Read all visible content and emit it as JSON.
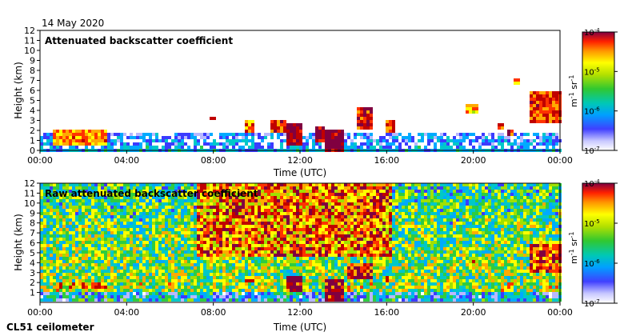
{
  "date_label": "14 May 2020",
  "instrument_label": "CL51 ceilometer",
  "colors": {
    "colormap": [
      "#ffffff",
      "#b8b8ff",
      "#3b3bff",
      "#00aaff",
      "#00c8c8",
      "#2ecc40",
      "#a0e000",
      "#ffff00",
      "#ffaa00",
      "#ff3300",
      "#c00000",
      "#800040"
    ]
  },
  "chart_data": [
    {
      "type": "heatmap",
      "title": "Attenuated backscatter coefficient",
      "xlabel": "Time (UTC)",
      "ylabel": "Height (km)",
      "xlim": [
        0,
        24
      ],
      "ylim": [
        0,
        12
      ],
      "x_ticks": [
        "00:00",
        "04:00",
        "08:00",
        "12:00",
        "16:00",
        "20:00",
        "00:00"
      ],
      "x_tick_values": [
        0,
        4,
        8,
        12,
        16,
        20,
        24
      ],
      "y_ticks": [
        "0",
        "1",
        "2",
        "3",
        "4",
        "5",
        "6",
        "7",
        "8",
        "9",
        "10",
        "11",
        "12"
      ],
      "colorbar": {
        "label_base": "m",
        "label_exp1": "-1",
        "label_mid": " sr",
        "label_exp2": "-1",
        "ticks": [
          {
            "base": "10",
            "exp": "-4",
            "value": -4
          },
          {
            "base": "10",
            "exp": "-5",
            "value": -5
          },
          {
            "base": "10",
            "exp": "-6",
            "value": -6
          },
          {
            "base": "10",
            "exp": "-7",
            "value": -7
          }
        ],
        "range": [
          -7,
          -4
        ]
      },
      "features": [
        {
          "name": "boundary-layer",
          "t0": 0,
          "t1": 24,
          "h0": 0,
          "h1": 1.9,
          "level": 0.22
        },
        {
          "name": "aerosol-layer",
          "t0": 0.6,
          "t1": 3.1,
          "h0": 0.6,
          "h1": 2.1,
          "level": 0.72
        },
        {
          "name": "cloud",
          "t0": 7.9,
          "t1": 8.1,
          "h0": 3.0,
          "h1": 3.5,
          "level": 0.8
        },
        {
          "name": "cloud",
          "t0": 9.4,
          "t1": 9.9,
          "h0": 1.7,
          "h1": 3.0,
          "level": 0.75
        },
        {
          "name": "cloud",
          "t0": 10.7,
          "t1": 11.3,
          "h0": 1.6,
          "h1": 3.2,
          "level": 0.85
        },
        {
          "name": "cloud",
          "t0": 11.3,
          "t1": 12.1,
          "h0": 0.4,
          "h1": 2.8,
          "level": 0.95
        },
        {
          "name": "cloud",
          "t0": 12.7,
          "t1": 13.1,
          "h0": 0.8,
          "h1": 2.5,
          "level": 0.9
        },
        {
          "name": "cloud",
          "t0": 13.1,
          "t1": 14.0,
          "h0": 0.0,
          "h1": 2.2,
          "level": 0.95
        },
        {
          "name": "cloud",
          "t0": 14.6,
          "t1": 15.3,
          "h0": 2.2,
          "h1": 4.3,
          "level": 0.85
        },
        {
          "name": "cloud",
          "t0": 15.9,
          "t1": 16.4,
          "h0": 1.7,
          "h1": 2.9,
          "level": 0.8
        },
        {
          "name": "cloud",
          "t0": 19.7,
          "t1": 20.3,
          "h0": 3.8,
          "h1": 4.5,
          "level": 0.7
        },
        {
          "name": "cloud",
          "t0": 21.1,
          "t1": 21.4,
          "h0": 2.0,
          "h1": 2.6,
          "level": 0.75
        },
        {
          "name": "cloud",
          "t0": 21.5,
          "t1": 21.9,
          "h0": 1.3,
          "h1": 2.0,
          "level": 0.85
        },
        {
          "name": "cloud",
          "t0": 21.9,
          "t1": 22.1,
          "h0": 6.5,
          "h1": 7.2,
          "level": 0.7
        },
        {
          "name": "cloud",
          "t0": 22.6,
          "t1": 24.0,
          "h0": 2.8,
          "h1": 6.0,
          "level": 0.8
        }
      ]
    },
    {
      "type": "heatmap",
      "title": "Raw attenuated backscatter coefficient",
      "xlabel": "Time (UTC)",
      "ylabel": "Height (km)",
      "xlim": [
        0,
        24
      ],
      "ylim": [
        0,
        12
      ],
      "x_ticks": [
        "00:00",
        "04:00",
        "08:00",
        "12:00",
        "16:00",
        "20:00",
        "00:00"
      ],
      "x_tick_values": [
        0,
        4,
        8,
        12,
        16,
        20,
        24
      ],
      "y_ticks": [
        "1",
        "2",
        "3",
        "4",
        "5",
        "6",
        "7",
        "8",
        "9",
        "10",
        "11",
        "12"
      ],
      "colorbar": {
        "label_base": "m",
        "label_exp1": "-1",
        "label_mid": " sr",
        "label_exp2": "-1",
        "ticks": [
          {
            "base": "10",
            "exp": "-4",
            "value": -4
          },
          {
            "base": "10",
            "exp": "-5",
            "value": -5
          },
          {
            "base": "10",
            "exp": "-6",
            "value": -6
          },
          {
            "base": "10",
            "exp": "-7",
            "value": -7
          }
        ],
        "range": [
          -7,
          -4
        ]
      },
      "features": [
        {
          "name": "background-noise",
          "t0": 0,
          "t1": 24,
          "h0": 0,
          "h1": 12,
          "level": 0.5
        },
        {
          "name": "enhanced-noise",
          "t0": 7.3,
          "t1": 16.3,
          "h0": 4.5,
          "h1": 12,
          "level": 0.75
        },
        {
          "name": "aerosol-layer",
          "t0": 0.6,
          "t1": 3.1,
          "h0": 1.4,
          "h1": 2.1,
          "level": 0.7
        },
        {
          "name": "cloud",
          "t0": 9.4,
          "t1": 9.9,
          "h0": 2.0,
          "h1": 2.8,
          "level": 0.85
        },
        {
          "name": "cloud",
          "t0": 11.3,
          "t1": 12.1,
          "h0": 1.0,
          "h1": 2.8,
          "level": 0.95
        },
        {
          "name": "cloud",
          "t0": 13.1,
          "t1": 14.0,
          "h0": 0.0,
          "h1": 2.3,
          "level": 0.95
        },
        {
          "name": "cloud",
          "t0": 14.2,
          "t1": 15.3,
          "h0": 2.4,
          "h1": 4.0,
          "level": 0.9
        },
        {
          "name": "cloud",
          "t0": 15.9,
          "t1": 16.4,
          "h0": 2.0,
          "h1": 2.8,
          "level": 0.8
        },
        {
          "name": "cloud",
          "t0": 19.9,
          "t1": 20.2,
          "h0": 3.8,
          "h1": 4.3,
          "level": 0.75
        },
        {
          "name": "cloud",
          "t0": 21.5,
          "t1": 21.9,
          "h0": 1.5,
          "h1": 2.1,
          "level": 0.85
        },
        {
          "name": "cloud",
          "t0": 22.6,
          "t1": 24.0,
          "h0": 3.0,
          "h1": 6.0,
          "level": 0.8
        }
      ]
    }
  ]
}
